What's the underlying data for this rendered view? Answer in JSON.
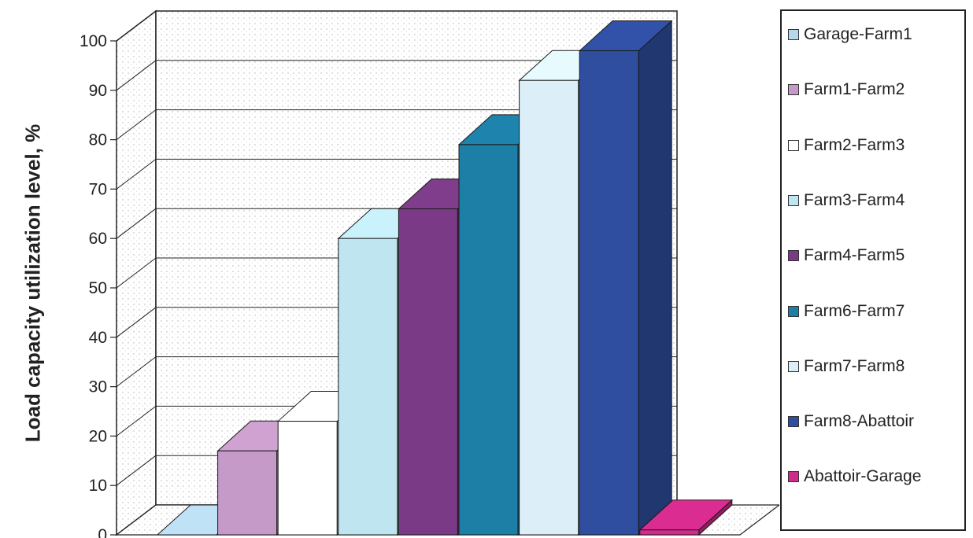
{
  "chart_data": {
    "type": "bar",
    "ylabel": "Load capacity utilization level, %",
    "ylim": [
      0,
      100
    ],
    "yticks": [
      "0",
      "10",
      "20",
      "30",
      "40",
      "50",
      "60",
      "70",
      "80",
      "90",
      "100"
    ],
    "grid": true,
    "legend_position": "right",
    "series": [
      {
        "name": "Garage-Farm1",
        "value": 0,
        "color": "#b7d7ea"
      },
      {
        "name": "Farm1-Farm2",
        "value": 17,
        "color": "#c69ac8"
      },
      {
        "name": "Farm2-Farm3",
        "value": 23,
        "color": "#ffffff"
      },
      {
        "name": "Farm3-Farm4",
        "value": 60,
        "color": "#bfe6f0"
      },
      {
        "name": "Farm4-Farm5",
        "value": 66,
        "color": "#7a3a85"
      },
      {
        "name": "Farm6-Farm7",
        "value": 79,
        "color": "#1d7ea6"
      },
      {
        "name": "Farm7-Farm8",
        "value": 92,
        "color": "#dceff8"
      },
      {
        "name": "Farm8-Abattoir",
        "value": 98,
        "color": "#2f4ea0"
      },
      {
        "name": "Abattoir-Garage",
        "value": 1,
        "color": "#d02a8a"
      }
    ]
  }
}
